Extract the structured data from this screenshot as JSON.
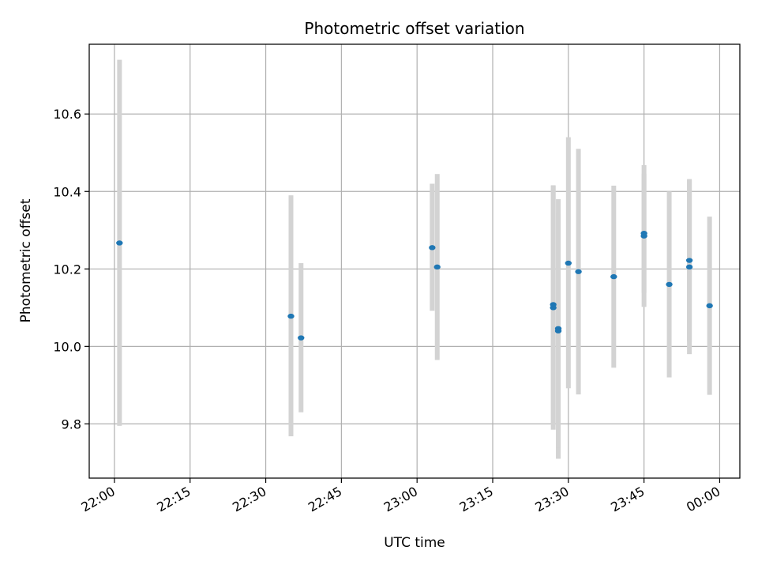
{
  "chart_data": {
    "type": "scatter",
    "title": "Photometric offset variation",
    "xlabel": "UTC time",
    "ylabel": "Photometric offset",
    "x_ticks": [
      "22:00",
      "22:15",
      "22:30",
      "22:45",
      "23:00",
      "23:15",
      "23:30",
      "23:45",
      "00:00"
    ],
    "y_ticks": [
      "9.8",
      "10.0",
      "10.2",
      "10.4",
      "10.6"
    ],
    "xlim": [
      "21:55",
      "00:04"
    ],
    "ylim": [
      9.66,
      10.78
    ],
    "grid": true,
    "colors": {
      "points": "#1f77b4",
      "errorbars": "#d3d3d3",
      "grid": "#b0b0b0"
    },
    "points": [
      {
        "x": "22:01",
        "y": 10.267,
        "err_low": 9.795,
        "err_high": 10.74
      },
      {
        "x": "22:35",
        "y": 10.078,
        "err_low": 9.768,
        "err_high": 10.39
      },
      {
        "x": "22:37",
        "y": 10.022,
        "err_low": 9.83,
        "err_high": 10.215
      },
      {
        "x": "23:03",
        "y": 10.255,
        "err_low": 10.092,
        "err_high": 10.42
      },
      {
        "x": "23:04",
        "y": 10.205,
        "err_low": 9.965,
        "err_high": 10.445
      },
      {
        "x": "23:27",
        "y": 10.1,
        "err_low": 9.785,
        "err_high": 10.415
      },
      {
        "x": "23:27",
        "y": 10.108,
        "err_low": 9.8,
        "err_high": 10.416
      },
      {
        "x": "23:28",
        "y": 10.046,
        "err_low": 9.71,
        "err_high": 10.38
      },
      {
        "x": "23:28",
        "y": 10.04,
        "err_low": 9.738,
        "err_high": 10.342
      },
      {
        "x": "23:30",
        "y": 10.215,
        "err_low": 9.892,
        "err_high": 10.54
      },
      {
        "x": "23:32",
        "y": 10.193,
        "err_low": 9.876,
        "err_high": 10.51
      },
      {
        "x": "23:39",
        "y": 10.18,
        "err_low": 9.945,
        "err_high": 10.415
      },
      {
        "x": "23:45",
        "y": 10.292,
        "err_low": 10.138,
        "err_high": 10.446
      },
      {
        "x": "23:45",
        "y": 10.285,
        "err_low": 10.102,
        "err_high": 10.468
      },
      {
        "x": "23:50",
        "y": 10.16,
        "err_low": 9.92,
        "err_high": 10.4
      },
      {
        "x": "23:54",
        "y": 10.205,
        "err_low": 9.98,
        "err_high": 10.43
      },
      {
        "x": "23:54",
        "y": 10.222,
        "err_low": 10.012,
        "err_high": 10.432
      },
      {
        "x": "23:58",
        "y": 10.105,
        "err_low": 9.875,
        "err_high": 10.335
      }
    ]
  }
}
